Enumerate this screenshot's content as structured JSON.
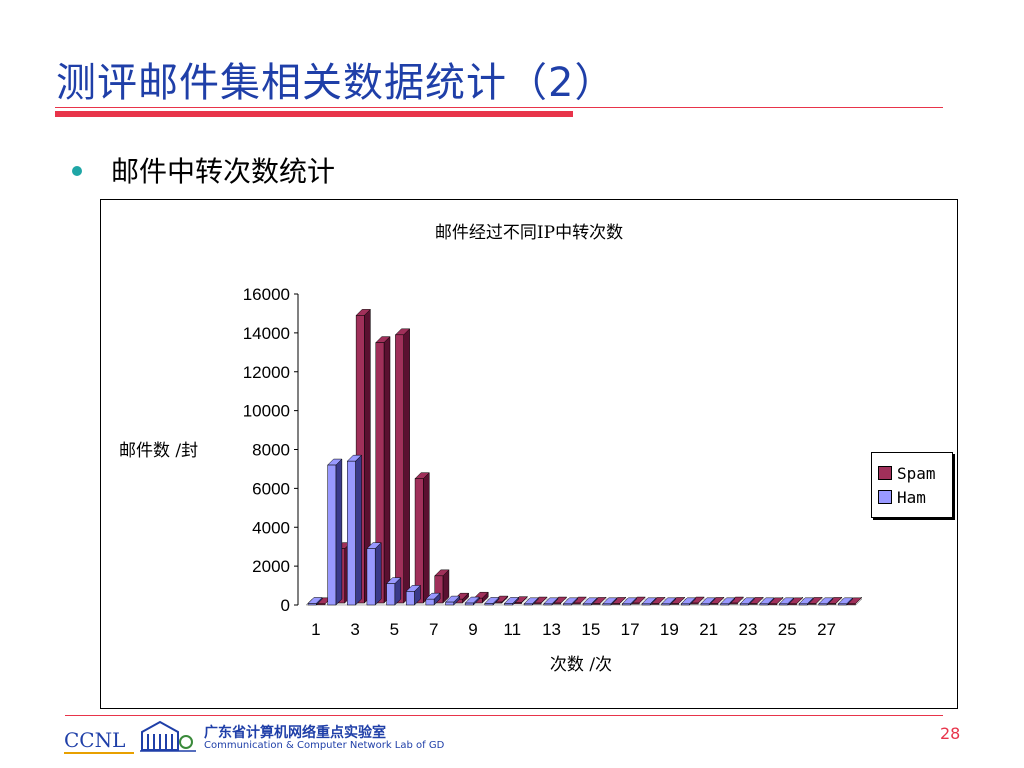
{
  "slide": {
    "title": "测评邮件集相关数据统计（2）",
    "bullet": "邮件中转次数统计",
    "page_number": "28"
  },
  "footer": {
    "logo_text": "CCNL",
    "lab_name_cn": "广东省计算机网络重点实验室",
    "lab_name_en": "Communication & Computer Network Lab of GD"
  },
  "colors": {
    "spam": "#a0305a",
    "spam_dark": "#5a1030",
    "ham": "#9999ff",
    "ham_dark": "#3a3a8a",
    "title": "#1f3fa8",
    "accent_red": "#e8344a"
  },
  "chart_data": {
    "type": "bar",
    "title": "邮件经过不同IP中转次数",
    "xlabel": "次数 /次",
    "ylabel": "邮件数 /封",
    "ylim": [
      0,
      16000
    ],
    "yticks": [
      "0",
      "2000",
      "4000",
      "6000",
      "8000",
      "10000",
      "12000",
      "14000",
      "16000"
    ],
    "categories": [
      "1",
      "2",
      "3",
      "4",
      "5",
      "6",
      "7",
      "8",
      "9",
      "10",
      "11",
      "12",
      "13",
      "14",
      "15",
      "16",
      "17",
      "18",
      "19",
      "20",
      "21",
      "22",
      "23",
      "24",
      "25",
      "26",
      "27",
      "28"
    ],
    "x_tick_labels": [
      "1",
      "3",
      "5",
      "7",
      "9",
      "11",
      "13",
      "15",
      "17",
      "19",
      "21",
      "23",
      "25",
      "27"
    ],
    "legend_position": "right",
    "series": [
      {
        "name": "Spam",
        "values": [
          60,
          2900,
          14900,
          13500,
          13900,
          6500,
          1500,
          300,
          350,
          150,
          120,
          100,
          100,
          100,
          80,
          80,
          100,
          80,
          80,
          100,
          80,
          100,
          80,
          60,
          60,
          80,
          80,
          60
        ]
      },
      {
        "name": "Ham",
        "values": [
          80,
          7200,
          7400,
          2900,
          1100,
          700,
          300,
          150,
          100,
          80,
          80,
          60,
          60,
          60,
          60,
          60,
          60,
          60,
          60,
          60,
          60,
          60,
          60,
          60,
          60,
          60,
          60,
          60
        ]
      }
    ]
  }
}
